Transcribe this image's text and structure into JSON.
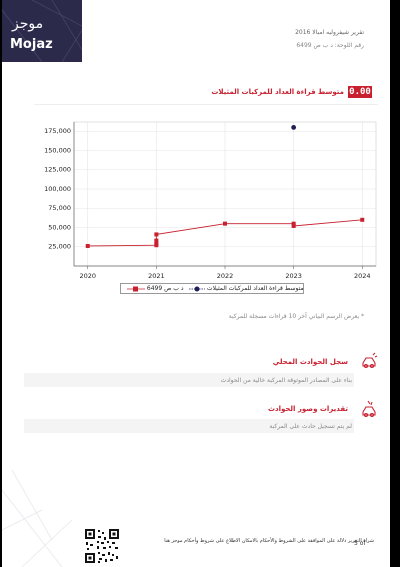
{
  "logo": {
    "arabic": "موجز",
    "english": "Mojaz"
  },
  "header": {
    "report_title": "تقرير شيفروليه امبالا 2016",
    "plate": "رقم اللوحة:  د ب ص 6499"
  },
  "section": {
    "badge": "0.00",
    "title": "متوسط قراءة العداد للمركبات المثيلات"
  },
  "chart_data": {
    "type": "line",
    "x": [
      2020,
      2021,
      2022,
      2023,
      2024
    ],
    "xlim": [
      2019.8,
      2024.2
    ],
    "ylim": [
      0,
      187000
    ],
    "yticks": [
      25000,
      50000,
      75000,
      100000,
      125000,
      150000,
      175000
    ],
    "ytick_labels": [
      "25,000",
      "50,000",
      "75,000",
      "100,000",
      "125,000",
      "150,000",
      "175,000"
    ],
    "xtick_labels": [
      "2020",
      "2021",
      "2022",
      "2023",
      "2024"
    ],
    "grid": true,
    "legend_position": "bottom",
    "series": [
      {
        "name": "د ب ص 6499",
        "color": "#c8202f",
        "points": [
          [
            2020,
            26000
          ],
          [
            2021,
            27000
          ],
          [
            2021,
            29000
          ],
          [
            2021,
            33000
          ],
          [
            2021,
            41000
          ],
          [
            2022,
            55000
          ],
          [
            2023,
            55000
          ],
          [
            2023,
            52000
          ],
          [
            2024,
            60000
          ]
        ]
      },
      {
        "name": "متوسط قراءة العداد للمركبات المثيلات",
        "color": "#1f1f5a",
        "points": [
          [
            2023,
            180000
          ]
        ]
      }
    ]
  },
  "footnote": "* يعرض الرسم البياني آخر 10 قراءات مسجلة للمركبة",
  "local_accidents": {
    "title": "سجل الحوادث المحلي",
    "text": "بناء على المصادر الموثوقة المركبة خالية من الحوادث"
  },
  "accident_estimates": {
    "title": "تقديرات وصور الحوادث",
    "text": "لم يتم تسجيل حادث على المركبة"
  },
  "footer": {
    "disclaimer": "شراء التقرير دلالة على الموافقة على الشروط والأحكام بالامكان الاطلاع على شروط وأحكام موجز هنا",
    "page": "5   of"
  },
  "colors": {
    "accent": "#c8202f",
    "brand": "#2c2a4a"
  }
}
